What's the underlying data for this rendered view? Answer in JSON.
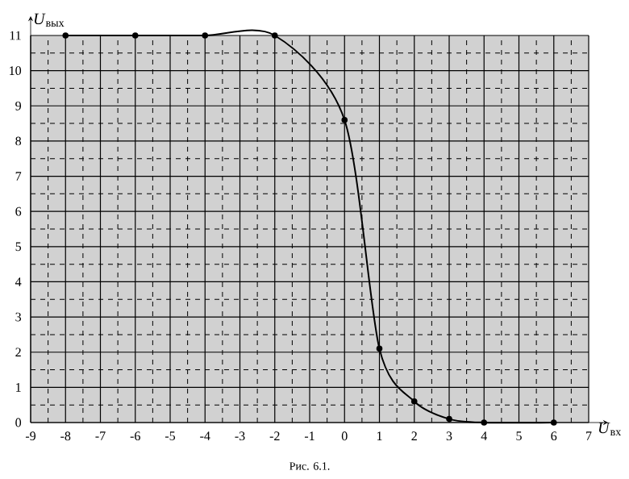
{
  "chart_data": {
    "type": "line",
    "xlabel": "*U*$_{вх}$",
    "ylabel": "*U*$_{вых}$",
    "x": [
      -8,
      -6,
      -4,
      -2,
      0,
      1,
      2,
      3,
      4,
      6
    ],
    "values": [
      11,
      11,
      11,
      11,
      8.6,
      2.1,
      0.6,
      0.1,
      0,
      0
    ],
    "color": "#000000",
    "xlim": [
      -9,
      7
    ],
    "ylim": [
      0,
      11
    ],
    "xticks": [
      -9,
      -8,
      -7,
      -6,
      -5,
      -4,
      -3,
      -2,
      -1,
      0,
      1,
      2,
      3,
      4,
      5,
      6,
      7
    ],
    "yticks": [
      0,
      1,
      2,
      3,
      4,
      5,
      6,
      7,
      8,
      9,
      10,
      11
    ],
    "grid": true,
    "marker": "circle",
    "line_style": "solid",
    "annotations": [
      "Рис. 6.1."
    ]
  }
}
